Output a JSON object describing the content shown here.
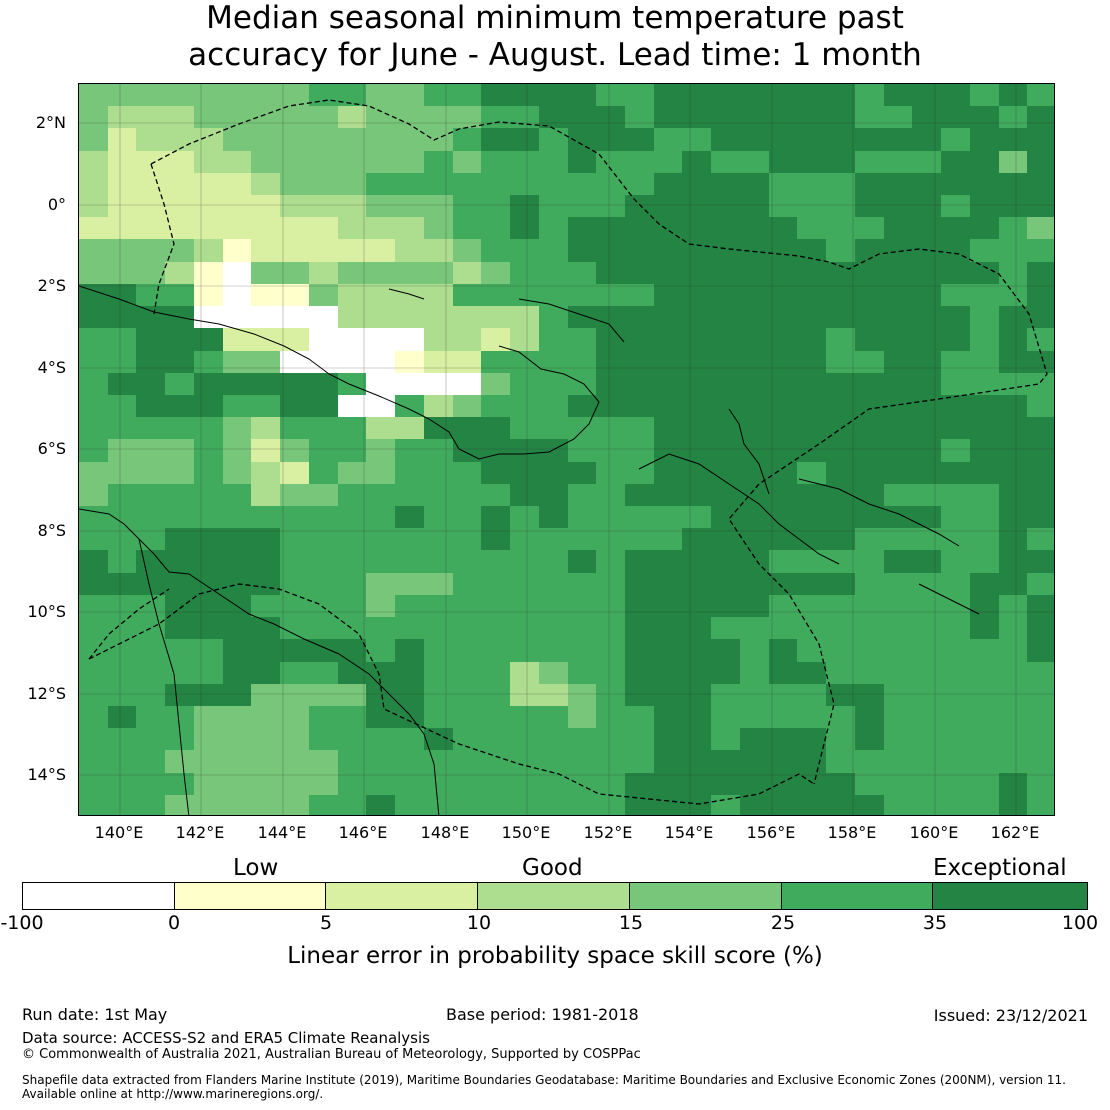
{
  "title_line1": "Median seasonal minimum temperature past",
  "title_line2": "accuracy for June - August. Lead time: 1 month",
  "map": {
    "lat_ticks": [
      "2°N",
      "0°",
      "2°S",
      "4°S",
      "6°S",
      "8°S",
      "10°S",
      "12°S",
      "14°S"
    ],
    "lon_ticks": [
      "140°E",
      "142°E",
      "144°E",
      "146°E",
      "148°E",
      "150°E",
      "152°E",
      "154°E",
      "156°E",
      "158°E",
      "160°E",
      "162°E"
    ],
    "grid_rows": [
      "4444444455445566665566666665666565",
      "4333444443444455666566666665566656",
      "4233344444444566566655666666665666",
      "3222334444445455565556556665556646",
      "3222223444555555555566665556666666",
      "3222222333444556555666665556665666",
      "2222222223334556566666666555666654",
      "4444312222233455566666666656666555",
      "4443104434444345556666666666666656",
      "6655101143333555555566666666665556",
      "6666000003333333566666666666666566",
      "5566622200003323556666666656666565",
      "5566544000012255556666666655665566",
      "5665666665000045556666666666665555",
      "5566655660053455566666666666666665",
      "5555543555336665555566666666666666",
      "5444542455455666655566666666665666",
      "4444543254455566665566666566666666",
      "4555553445555556655666666666555566",
      "5555555555565565655555666666665566",
      "5556666555555565555556666665555565",
      "6566666555555555565666665555665566",
      "6666666555444555555666666665555665",
      "5556665555455555555666665555555656",
      "5556666555555555555666555555555656",
      "5555566666565555555666656555555556",
      "5555566556665553455666656655555555",
      "5556664444665553345666555566555555",
      "5655444455665555545566555556555555",
      "5555444455556555555566566656555555",
      "5554444445555555555566666655555555",
      "5555444445555555555666666665555565",
      "5554444455655555555666566666555565"
    ],
    "colors": {
      "0": "#ffffff",
      "1": "#ffffcc",
      "2": "#d9f0a3",
      "3": "#addd8e",
      "4": "#78c679",
      "5": "#41ab5d",
      "6": "#238443"
    }
  },
  "legend": {
    "categories": [
      "Low",
      "Good",
      "Exceptional"
    ],
    "ticks": [
      "-100",
      "0",
      "5",
      "10",
      "15",
      "25",
      "35",
      "100"
    ],
    "colors": [
      "#ffffff",
      "#ffffcc",
      "#d9f0a3",
      "#addd8e",
      "#78c679",
      "#41ab5d",
      "#238443"
    ],
    "label": "Linear error in probability space skill score (%)"
  },
  "footer": {
    "run_date": "Run date: 1st May",
    "base_period": "Base period: 1981-2018",
    "issued": "Issued: 23/12/2021",
    "data_source": "Data source: ACCESS-S2 and ERA5 Climate Reanalysis",
    "copyright": "© Commonwealth of Australia 2021, Australian Bureau of Meteorology, Supported by COSPPac",
    "shapefile_1": "Shapefile data extracted from Flanders Marine Institute (2019), Maritime Boundaries Geodatabase: Maritime Boundaries and Exclusive Economic Zones (200NM), version 11.",
    "shapefile_2": "Available online at http://www.marineregions.org/."
  }
}
